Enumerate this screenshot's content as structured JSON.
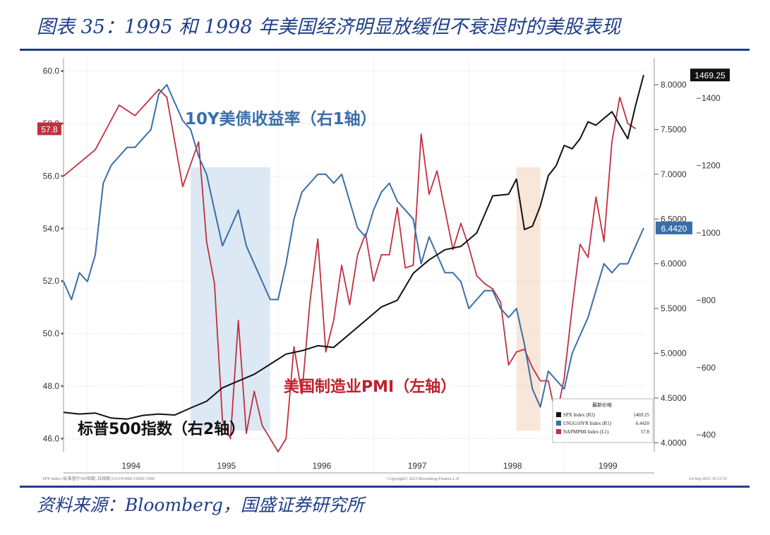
{
  "header": {
    "title": "图表 35：1995 和 1998 年美国经济明显放缓但不衰退时的美股表现"
  },
  "source": {
    "text": "资料来源：Bloomberg，国盛证券研究所"
  },
  "chart_data": {
    "type": "line",
    "title": "图表 35：1995 和 1998 年美国经济明显放缓但不衰退时的美股表现",
    "x_range": [
      "1993-10",
      "1999-11"
    ],
    "x_tick_labels": [
      "1994",
      "1995",
      "1996",
      "1997",
      "1998",
      "1999"
    ],
    "axes": {
      "left": {
        "ylim": [
          45.5,
          60.5
        ],
        "ticks": [
          "60.0",
          "58.0",
          "56.0",
          "54.0",
          "52.0",
          "50.0",
          "48.0",
          "46.0"
        ]
      },
      "right1": {
        "ylim": [
          3.9,
          8.3
        ],
        "ticks": [
          "8.0000",
          "7.5000",
          "7.0000",
          "6.5000",
          "6.0000",
          "5.5000",
          "5.0000",
          "4.5000",
          "4.0000"
        ]
      },
      "right2": {
        "ylim": [
          350,
          1520
        ],
        "ticks": [
          "1400",
          "1200",
          "1000",
          "800",
          "600",
          "400"
        ]
      }
    },
    "series": [
      {
        "name": "美国制造业PMI（左轴）",
        "axis": "left",
        "color": "#c0303f",
        "x": [
          "1993-10",
          "1994-02",
          "1994-05",
          "1994-07",
          "1994-10",
          "1994-11",
          "1995-01",
          "1995-03",
          "1995-04",
          "1995-05",
          "1995-06",
          "1995-07",
          "1995-08",
          "1995-09",
          "1995-10",
          "1995-11",
          "1995-12",
          "1996-01",
          "1996-02",
          "1996-03",
          "1996-04",
          "1996-05",
          "1996-06",
          "1996-07",
          "1996-08",
          "1996-09",
          "1996-10",
          "1996-11",
          "1996-12",
          "1997-01",
          "1997-02",
          "1997-03",
          "1997-04",
          "1997-05",
          "1997-06",
          "1997-07",
          "1997-08",
          "1997-09",
          "1997-10",
          "1997-11",
          "1997-12",
          "1998-01",
          "1998-02",
          "1998-03",
          "1998-04",
          "1998-05",
          "1998-06",
          "1998-07",
          "1998-08",
          "1998-09",
          "1998-10",
          "1998-11",
          "1998-12",
          "1999-01",
          "1999-02",
          "1999-03",
          "1999-04",
          "1999-05",
          "1999-06",
          "1999-07",
          "1999-08",
          "1999-09",
          "1999-10"
        ],
        "values": [
          56.0,
          57.0,
          58.7,
          58.3,
          59.3,
          59.0,
          55.6,
          57.3,
          53.5,
          51.9,
          46.7,
          46.0,
          50.5,
          46.2,
          47.8,
          46.5,
          46.0,
          45.5,
          46.0,
          49.5,
          47.7,
          51.2,
          53.6,
          49.3,
          50.5,
          52.6,
          51.1,
          53.0,
          53.8,
          52.0,
          53.0,
          53.0,
          54.8,
          52.5,
          52.6,
          57.6,
          55.3,
          56.2,
          54.7,
          53.2,
          54.2,
          53.3,
          52.2,
          51.9,
          51.7,
          51.2,
          48.8,
          49.3,
          49.4,
          48.7,
          48.2,
          48.2,
          46.8,
          48.3,
          51.0,
          53.4,
          52.9,
          55.2,
          53.5,
          57.3,
          59.0,
          58.0,
          57.8
        ]
      },
      {
        "name": "10Y美债收益率（右1轴）",
        "axis": "right1",
        "color": "#3a6ea8",
        "x": [
          "1993-10",
          "1993-11",
          "1993-12",
          "1994-01",
          "1994-02",
          "1994-03",
          "1994-04",
          "1994-05",
          "1994-06",
          "1994-07",
          "1994-08",
          "1994-09",
          "1994-10",
          "1994-11",
          "1994-12",
          "1995-01",
          "1995-02",
          "1995-03",
          "1995-04",
          "1995-05",
          "1995-06",
          "1995-07",
          "1995-08",
          "1995-09",
          "1995-10",
          "1995-11",
          "1995-12",
          "1996-01",
          "1996-02",
          "1996-03",
          "1996-04",
          "1996-05",
          "1996-06",
          "1996-07",
          "1996-08",
          "1996-09",
          "1996-10",
          "1996-11",
          "1996-12",
          "1997-01",
          "1997-02",
          "1997-03",
          "1997-04",
          "1997-05",
          "1997-06",
          "1997-07",
          "1997-08",
          "1997-09",
          "1997-10",
          "1997-11",
          "1997-12",
          "1998-01",
          "1998-02",
          "1998-03",
          "1998-04",
          "1998-05",
          "1998-06",
          "1998-07",
          "1998-08",
          "1998-09",
          "1998-10",
          "1998-11",
          "1998-12",
          "1999-01",
          "1999-02",
          "1999-03",
          "1999-04",
          "1999-05",
          "1999-06",
          "1999-07",
          "1999-08",
          "1999-09",
          "1999-10",
          "1999-11"
        ],
        "values": [
          5.8,
          5.6,
          5.9,
          5.8,
          6.1,
          6.9,
          7.1,
          7.2,
          7.3,
          7.3,
          7.4,
          7.5,
          7.9,
          8.0,
          7.8,
          7.6,
          7.5,
          7.2,
          7.0,
          6.6,
          6.2,
          6.4,
          6.6,
          6.2,
          6.0,
          5.8,
          5.6,
          5.6,
          6.0,
          6.5,
          6.8,
          6.9,
          7.0,
          7.0,
          6.9,
          7.0,
          6.7,
          6.4,
          6.3,
          6.6,
          6.8,
          6.9,
          6.7,
          6.6,
          6.5,
          6.0,
          6.3,
          6.1,
          5.9,
          5.9,
          5.8,
          5.5,
          5.6,
          5.7,
          5.7,
          5.5,
          5.4,
          5.5,
          5.1,
          4.6,
          4.4,
          4.8,
          4.7,
          4.6,
          5.0,
          5.2,
          5.4,
          5.7,
          6.0,
          5.9,
          6.0,
          6.0,
          6.2,
          6.4
        ]
      },
      {
        "name": "标普500指数（右2轴）",
        "axis": "right2",
        "color": "#111111",
        "x": [
          "1993-10",
          "1993-12",
          "1994-02",
          "1994-04",
          "1994-06",
          "1994-08",
          "1994-10",
          "1994-12",
          "1995-02",
          "1995-04",
          "1995-06",
          "1995-08",
          "1995-10",
          "1995-12",
          "1996-02",
          "1996-04",
          "1996-06",
          "1996-08",
          "1996-10",
          "1996-12",
          "1997-02",
          "1997-04",
          "1997-06",
          "1997-08",
          "1997-10",
          "1997-12",
          "1998-02",
          "1998-04",
          "1998-06",
          "1998-07",
          "1998-08",
          "1998-09",
          "1998-10",
          "1998-11",
          "1998-12",
          "1999-01",
          "1999-02",
          "1999-03",
          "1999-04",
          "1999-05",
          "1999-06",
          "1999-07",
          "1999-08",
          "1999-09",
          "1999-10",
          "1999-11"
        ],
        "values": [
          467,
          462,
          465,
          450,
          447,
          458,
          462,
          459,
          480,
          500,
          540,
          560,
          580,
          610,
          640,
          650,
          665,
          660,
          700,
          740,
          780,
          800,
          880,
          920,
          950,
          960,
          1000,
          1110,
          1115,
          1160,
          1010,
          1020,
          1080,
          1170,
          1200,
          1260,
          1250,
          1280,
          1330,
          1320,
          1340,
          1360,
          1320,
          1280,
          1380,
          1469.25
        ]
      }
    ],
    "last_value_tags": [
      {
        "series": "美国制造业PMI（左轴）",
        "text": "57.8",
        "color": "#c0303f"
      },
      {
        "series": "10Y美债收益率（右1轴）",
        "text": "6.4420",
        "color": "#3a6ea8"
      },
      {
        "series": "标普500指数（右2轴）",
        "text": "1469.25",
        "color": "#111111"
      }
    ],
    "shaded_periods": [
      {
        "from": "1995-02",
        "to": "1995-12",
        "color": "#dce8f4"
      },
      {
        "from": "1998-07",
        "to": "1998-10",
        "color": "#f8e6d8"
      }
    ],
    "annotations": [
      {
        "text": "10Y美债收益率（右1轴）",
        "color": "#3a6ea8"
      },
      {
        "text": "美国制造业PMI（左轴）",
        "color": "#c0202a"
      },
      {
        "text": "标普500指数（右2轴）",
        "color": "#111111"
      }
    ],
    "legend": {
      "placement": "bottom-right",
      "title": "最新价格",
      "items": [
        {
          "label": "SPX Index  (R2)",
          "value": "1469.25",
          "color": "#111111"
        },
        {
          "label": "USGG10YR Index  (R1)",
          "value": "6.4420",
          "color": "#3a6ea8"
        },
        {
          "label": "NAPMPMI Index  (L1)",
          "value": "57.8",
          "color": "#c0303f"
        }
      ]
    },
    "footer": {
      "left": "SPX Index (标准普尔500指数)  日线图 01JAN1994-31DEC1999",
      "center": "Copyright© 2023 Bloomberg Finance L.P.",
      "right": "24-Sep-2023 16:13:35"
    },
    "grid": true
  }
}
